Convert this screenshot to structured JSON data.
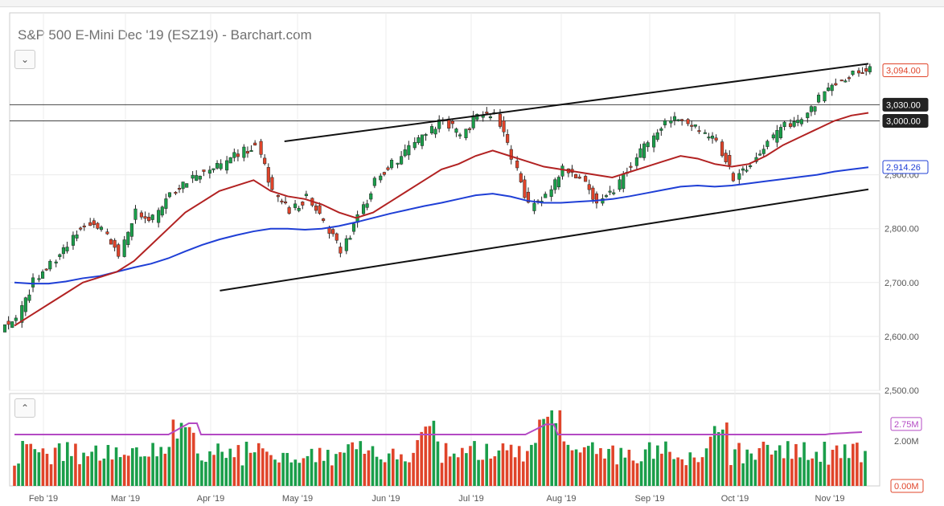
{
  "title": "S&P 500 E-Mini Dec '19 (ESZ19) - Barchart.com",
  "icons": {
    "collapse": "chevron-down-icon",
    "expand": "chevron-up-icon"
  },
  "colors": {
    "up": "#1a9e4a",
    "down": "#e0442a",
    "ma50": "#b22222",
    "ma200": "#1f3fd6",
    "volume_ma": "#b44ac4",
    "label_up": "#1f3fd6"
  },
  "chart_data": [
    {
      "type": "candlestick",
      "title": "S&P 500 E-Mini Dec '19 (ESZ19) - Barchart.com",
      "x_tick_labels": [
        "Feb '19",
        "Mar '19",
        "Apr '19",
        "May '19",
        "Jun '19",
        "Jul '19",
        "Aug '19",
        "Sep '19",
        "Oct '19",
        "Nov '19"
      ],
      "y_tick_labels": [
        "2,500.00",
        "2,600.00",
        "2,700.00",
        "2,800.00",
        "2,900.00",
        "3,000.00"
      ],
      "ylim": [
        2500,
        3120
      ],
      "grid": true,
      "price_labels": [
        {
          "value": 3094.0,
          "label": "3,094.00",
          "kind": "last"
        },
        {
          "value": 3030.0,
          "label": "3,030.00",
          "kind": "level"
        },
        {
          "value": 3000.0,
          "label": "3,000.00",
          "kind": "level"
        },
        {
          "value": 2914.26,
          "label": "2,914.26",
          "kind": "ma200"
        }
      ],
      "horizontal_levels": [
        3030,
        3000
      ],
      "channel_lines": [
        {
          "from": [
            "2019-04-30",
            2962
          ],
          "to": [
            "2019-11-15",
            3106
          ]
        },
        {
          "from": [
            "2019-04-08",
            2685
          ],
          "to": [
            "2019-11-15",
            2873
          ]
        }
      ],
      "closes_weekly": [
        2632,
        2700,
        2735,
        2775,
        2810,
        2795,
        2755,
        2830,
        2820,
        2870,
        2890,
        2910,
        2915,
        2940,
        2955,
        2870,
        2830,
        2860,
        2810,
        2760,
        2820,
        2890,
        2920,
        2950,
        2975,
        3000,
        2975,
        3010,
        3015,
        2930,
        2840,
        2860,
        2910,
        2895,
        2850,
        2870,
        2920,
        2960,
        3000,
        3005,
        2980,
        2960,
        2895,
        2920,
        2960,
        2990,
        3000,
        3040,
        3070,
        3090,
        3094
      ],
      "ma50_weekly": [
        2620,
        2640,
        2660,
        2680,
        2700,
        2710,
        2720,
        2740,
        2770,
        2800,
        2830,
        2850,
        2870,
        2880,
        2890,
        2870,
        2860,
        2855,
        2845,
        2830,
        2820,
        2830,
        2850,
        2870,
        2890,
        2910,
        2920,
        2935,
        2945,
        2935,
        2925,
        2915,
        2910,
        2905,
        2900,
        2895,
        2905,
        2915,
        2925,
        2935,
        2930,
        2920,
        2915,
        2920,
        2935,
        2955,
        2970,
        2985,
        3000,
        3010,
        3015
      ],
      "ma200_weekly": [
        2700,
        2698,
        2698,
        2702,
        2708,
        2712,
        2720,
        2728,
        2735,
        2745,
        2758,
        2770,
        2780,
        2788,
        2795,
        2800,
        2800,
        2798,
        2800,
        2805,
        2812,
        2820,
        2828,
        2835,
        2842,
        2848,
        2855,
        2862,
        2865,
        2860,
        2852,
        2848,
        2848,
        2850,
        2852,
        2855,
        2860,
        2866,
        2872,
        2878,
        2880,
        2878,
        2880,
        2884,
        2888,
        2892,
        2896,
        2900,
        2906,
        2910,
        2914
      ],
      "volume_axis_labels": [
        "2.00M",
        "0.00M"
      ],
      "volume_last_label": "2.75M",
      "volume_ylim": [
        0,
        4.1
      ]
    }
  ]
}
